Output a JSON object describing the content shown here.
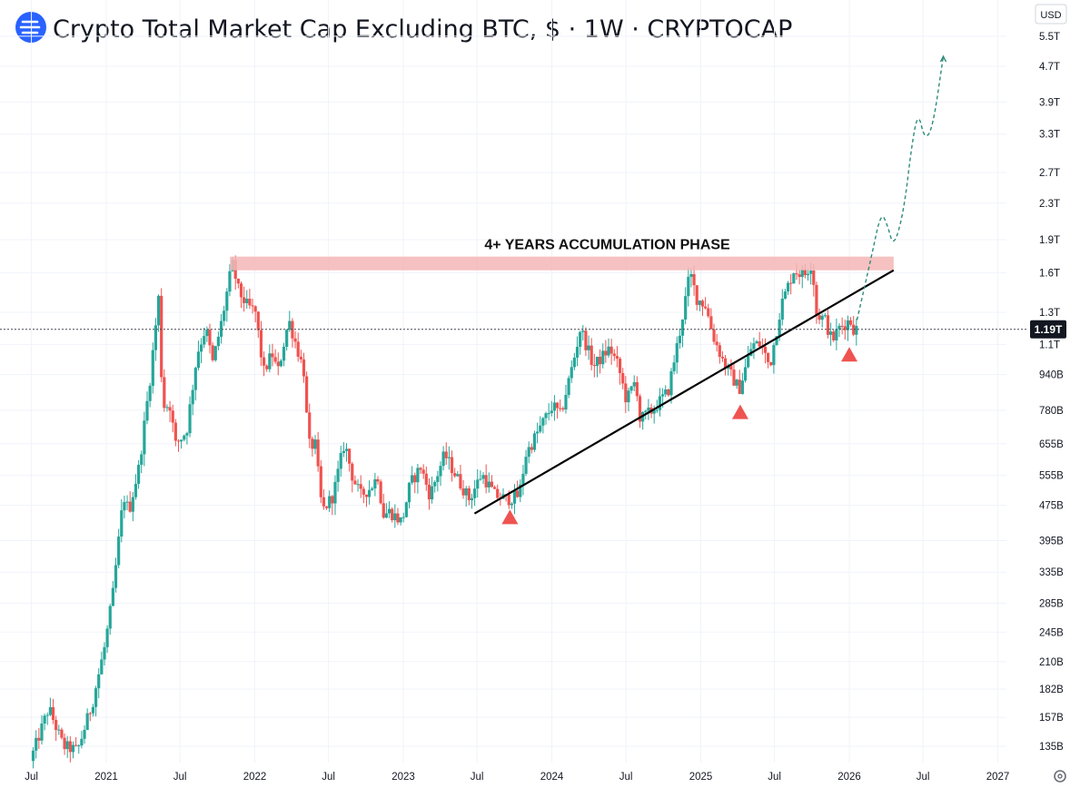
{
  "header": {
    "title": "Crypto Total Market Cap Excluding BTC, $ · 1W · CRYPTOCAP",
    "logo_icon": "cryptocap-logo-icon"
  },
  "currency_selector": {
    "label": "USD"
  },
  "settings_icon": "gear-icon",
  "colors": {
    "up": "#26a69a",
    "down": "#ef5350",
    "resistance_band": "#f4b6b6",
    "trendline": "#000000",
    "projection": "#2e8b7a",
    "arrow": "#ef5350",
    "last_price_bg": "#131722",
    "logo": "#2962ff"
  },
  "chart_data": {
    "type": "candlestick",
    "title": "Crypto Total Market Cap Excluding BTC, $ · 1W · CRYPTOCAP",
    "timeframe": "1W",
    "y_scale": "log",
    "y_unit": "USD",
    "ylim": [
      125000000000,
      6000000000000
    ],
    "xlim": [
      "2020-06-20",
      "2027-03-15"
    ],
    "x_ticks": [
      {
        "label": "Jul",
        "date": "2020-07-01"
      },
      {
        "label": "2021",
        "date": "2021-01-01"
      },
      {
        "label": "Jul",
        "date": "2021-07-01"
      },
      {
        "label": "2022",
        "date": "2022-01-01"
      },
      {
        "label": "Jul",
        "date": "2022-07-01"
      },
      {
        "label": "2023",
        "date": "2023-01-01"
      },
      {
        "label": "Jul",
        "date": "2023-07-01"
      },
      {
        "label": "2024",
        "date": "2024-01-01"
      },
      {
        "label": "Jul",
        "date": "2024-07-01"
      },
      {
        "label": "2025",
        "date": "2025-01-01"
      },
      {
        "label": "Jul",
        "date": "2025-07-01"
      },
      {
        "label": "2026",
        "date": "2026-01-01"
      },
      {
        "label": "Jul",
        "date": "2026-07-01"
      },
      {
        "label": "2027",
        "date": "2027-01-01"
      }
    ],
    "y_ticks": [
      {
        "label": "5.5T",
        "value": 5500000000000
      },
      {
        "label": "4.7T",
        "value": 4700000000000
      },
      {
        "label": "3.9T",
        "value": 3900000000000
      },
      {
        "label": "3.3T",
        "value": 3300000000000
      },
      {
        "label": "2.7T",
        "value": 2700000000000
      },
      {
        "label": "2.3T",
        "value": 2300000000000
      },
      {
        "label": "1.9T",
        "value": 1900000000000
      },
      {
        "label": "1.6T",
        "value": 1600000000000
      },
      {
        "label": "1.3T",
        "value": 1300000000000
      },
      {
        "label": "1.1T",
        "value": 1100000000000
      },
      {
        "label": "940B",
        "value": 940000000000
      },
      {
        "label": "780B",
        "value": 780000000000
      },
      {
        "label": "655B",
        "value": 655000000000
      },
      {
        "label": "555B",
        "value": 555000000000
      },
      {
        "label": "475B",
        "value": 475000000000
      },
      {
        "label": "395B",
        "value": 395000000000
      },
      {
        "label": "335B",
        "value": 335000000000
      },
      {
        "label": "285B",
        "value": 285000000000
      },
      {
        "label": "245B",
        "value": 245000000000
      },
      {
        "label": "210B",
        "value": 210000000000
      },
      {
        "label": "182B",
        "value": 182000000000
      },
      {
        "label": "157B",
        "value": 157000000000
      },
      {
        "label": "135B",
        "value": 135000000000
      }
    ],
    "last_price": {
      "label": "1.19T",
      "value": 1190000000000
    },
    "price_path": [
      [
        "2020-07-01",
        125000000000.0
      ],
      [
        "2020-08-15",
        165000000000.0
      ],
      [
        "2020-09-20",
        135000000000.0
      ],
      [
        "2020-10-25",
        132000000000.0
      ],
      [
        "2020-12-01",
        170000000000.0
      ],
      [
        "2021-01-01",
        230000000000.0
      ],
      [
        "2021-01-20",
        300000000000.0
      ],
      [
        "2021-02-15",
        500000000000.0
      ],
      [
        "2021-02-28",
        460000000000.0
      ],
      [
        "2021-03-25",
        580000000000.0
      ],
      [
        "2021-04-20",
        900000000000.0
      ],
      [
        "2021-05-12",
        1400000000000.0
      ],
      [
        "2021-05-22",
        800000000000.0
      ],
      [
        "2021-06-10",
        800000000000.0
      ],
      [
        "2021-06-22",
        650000000000.0
      ],
      [
        "2021-07-20",
        700000000000.0
      ],
      [
        "2021-08-15",
        1050000000000.0
      ],
      [
        "2021-09-05",
        1200000000000.0
      ],
      [
        "2021-09-22",
        1000000000000.0
      ],
      [
        "2021-10-15",
        1250000000000.0
      ],
      [
        "2021-11-09",
        1680000000000.0
      ],
      [
        "2021-11-25",
        1450000000000.0
      ],
      [
        "2021-12-15",
        1350000000000.0
      ],
      [
        "2022-01-05",
        1300000000000.0
      ],
      [
        "2022-01-25",
        950000000000.0
      ],
      [
        "2022-02-15",
        1050000000000.0
      ],
      [
        "2022-03-01",
        950000000000.0
      ],
      [
        "2022-03-28",
        1250000000000.0
      ],
      [
        "2022-04-15",
        1100000000000.0
      ],
      [
        "2022-05-05",
        950000000000.0
      ],
      [
        "2022-05-15",
        650000000000.0
      ],
      [
        "2022-06-01",
        650000000000.0
      ],
      [
        "2022-06-18",
        460000000000.0
      ],
      [
        "2022-07-15",
        500000000000.0
      ],
      [
        "2022-08-12",
        660000000000.0
      ],
      [
        "2022-09-01",
        550000000000.0
      ],
      [
        "2022-09-20",
        500000000000.0
      ],
      [
        "2022-10-15",
        520000000000.0
      ],
      [
        "2022-11-05",
        560000000000.0
      ],
      [
        "2022-11-12",
        450000000000.0
      ],
      [
        "2022-12-01",
        460000000000.0
      ],
      [
        "2022-12-31",
        435000000000.0
      ],
      [
        "2023-01-20",
        530000000000.0
      ],
      [
        "2023-02-15",
        580000000000.0
      ],
      [
        "2023-03-10",
        500000000000.0
      ],
      [
        "2023-04-15",
        620000000000.0
      ],
      [
        "2023-05-15",
        550000000000.0
      ],
      [
        "2023-06-15",
        490000000000.0
      ],
      [
        "2023-07-15",
        560000000000.0
      ],
      [
        "2023-08-17",
        500000000000.0
      ],
      [
        "2023-09-15",
        490000000000.0
      ],
      [
        "2023-10-15",
        500000000000.0
      ],
      [
        "2023-11-01",
        620000000000.0
      ],
      [
        "2023-12-01",
        700000000000.0
      ],
      [
        "2024-01-05",
        800000000000.0
      ],
      [
        "2024-01-25",
        760000000000.0
      ],
      [
        "2024-03-01",
        1050000000000.0
      ],
      [
        "2024-03-14",
        1200000000000.0
      ],
      [
        "2024-04-15",
        980000000000.0
      ],
      [
        "2024-05-25",
        1080000000000.0
      ],
      [
        "2024-06-15",
        980000000000.0
      ],
      [
        "2024-07-05",
        820000000000.0
      ],
      [
        "2024-07-29",
        920000000000.0
      ],
      [
        "2024-08-05",
        740000000000.0
      ],
      [
        "2024-09-07",
        780000000000.0
      ],
      [
        "2024-10-15",
        860000000000.0
      ],
      [
        "2024-11-15",
        1200000000000.0
      ],
      [
        "2024-12-08",
        1600000000000.0
      ],
      [
        "2024-12-25",
        1400000000000.0
      ],
      [
        "2025-01-15",
        1350000000000.0
      ],
      [
        "2025-02-03",
        1150000000000.0
      ],
      [
        "2025-03-01",
        1000000000000.0
      ],
      [
        "2025-04-08",
        870000000000.0
      ],
      [
        "2025-05-10",
        1100000000000.0
      ],
      [
        "2025-06-01",
        1100000000000.0
      ],
      [
        "2025-06-22",
        980000000000.0
      ],
      [
        "2025-07-20",
        1350000000000.0
      ],
      [
        "2025-08-20",
        1620000000000.0
      ],
      [
        "2025-09-15",
        1580000000000.0
      ],
      [
        "2025-10-06",
        1700000000000.0
      ],
      [
        "2025-10-11",
        1300000000000.0
      ],
      [
        "2025-11-05",
        1250000000000.0
      ],
      [
        "2025-11-22",
        1120000000000.0
      ],
      [
        "2025-12-10",
        1200000000000.0
      ],
      [
        "2026-01-05",
        1250000000000.0
      ],
      [
        "2026-01-15",
        1190000000000.0
      ]
    ],
    "annotations": [
      {
        "type": "resistance_band",
        "label": "4+ YEARS ACCUMULATION PHASE",
        "x_start": "2021-11-01",
        "x_end": "2026-04-20",
        "y_low": 1620000000000.0,
        "y_high": 1740000000000.0
      },
      {
        "type": "trendline",
        "start": [
          "2023-06-25",
          455000000000.0
        ],
        "end": [
          "2026-04-20",
          1620000000000.0
        ]
      },
      {
        "type": "support_arrows",
        "points": [
          {
            "date": "2023-09-20",
            "value": 445000000000.0
          },
          {
            "date": "2025-04-08",
            "value": 770000000000.0
          },
          {
            "date": "2026-01-01",
            "value": 1040000000000.0
          }
        ]
      },
      {
        "type": "projection",
        "style": "dashed",
        "path": [
          [
            "2026-01-20",
            1250000000000.0
          ],
          [
            "2026-02-25",
            1750000000000.0
          ],
          [
            "2026-03-20",
            2200000000000.0
          ],
          [
            "2026-04-05",
            2050000000000.0
          ],
          [
            "2026-04-20",
            1820000000000.0
          ],
          [
            "2026-05-15",
            2200000000000.0
          ],
          [
            "2026-06-05",
            3200000000000.0
          ],
          [
            "2026-06-20",
            3700000000000.0
          ],
          [
            "2026-07-05",
            3200000000000.0
          ],
          [
            "2026-07-25",
            3400000000000.0
          ],
          [
            "2026-08-20",
            4950000000000.0
          ]
        ]
      }
    ]
  }
}
